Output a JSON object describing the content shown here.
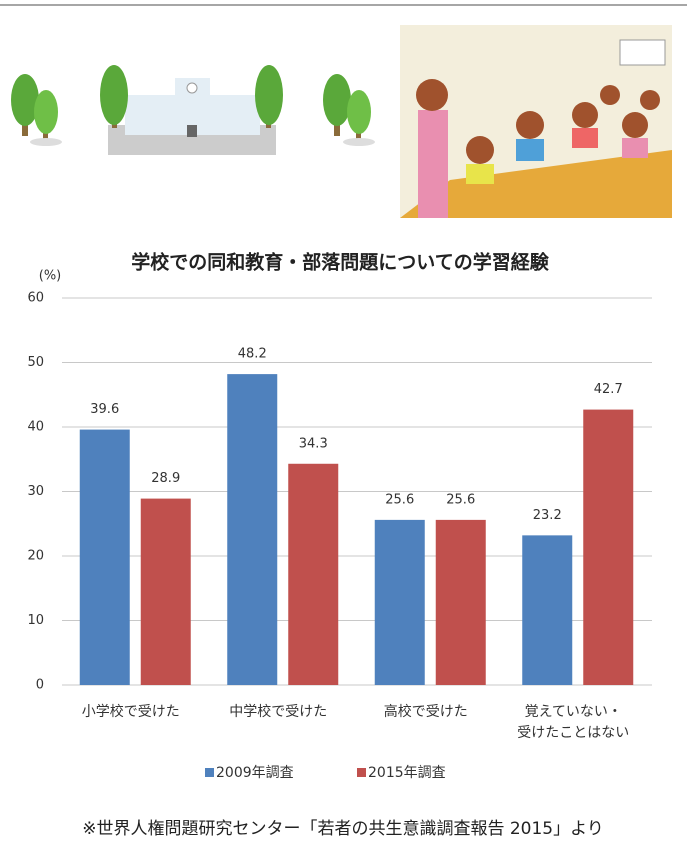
{
  "chart_data": {
    "type": "bar",
    "title": "学校での同和教育・部落問題についての学習経験",
    "y_unit": "(%)",
    "categories": [
      "小学校で受けた",
      "中学校で受けた",
      "高校で受けた",
      "覚えていない・\n受けたことはない"
    ],
    "series": [
      {
        "name": "2009年調査",
        "color": "#4f81bd",
        "values": [
          39.6,
          48.2,
          25.6,
          23.2
        ]
      },
      {
        "name": "2015年調査",
        "color": "#c0504d",
        "values": [
          28.9,
          34.3,
          25.6,
          42.7
        ]
      }
    ],
    "ylim": [
      0,
      60
    ],
    "yticks": [
      0,
      10,
      20,
      30,
      40,
      50,
      60
    ],
    "grid": true,
    "data_labels": true
  },
  "source": "※世界人権問題研究センター「若者の共生意識調査報告 2015」より"
}
